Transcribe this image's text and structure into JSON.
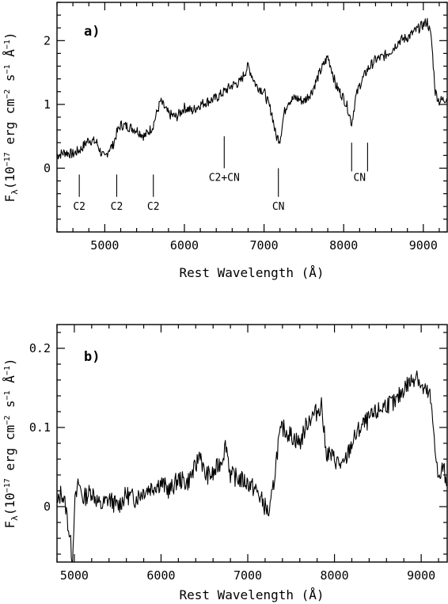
{
  "chart_data": [
    {
      "type": "line",
      "panel_label": "a)",
      "xlabel": "Rest Wavelength (Å)",
      "ylabel": "F_λ (10^-17 erg cm^-2 s^-1 Å^-1)",
      "xlim": [
        4400,
        9300
      ],
      "ylim": [
        -1.0,
        2.6
      ],
      "xticks": [
        5000,
        6000,
        7000,
        8000,
        9000
      ],
      "yticks": [
        0,
        1,
        2
      ],
      "grid": false,
      "series": [
        {
          "x": [
            4400,
            4500,
            4600,
            4700,
            4800,
            4900,
            4950,
            5000,
            5050,
            5100,
            5150,
            5200,
            5300,
            5400,
            5500,
            5600,
            5650,
            5700,
            5800,
            5900,
            6000,
            6100,
            6200,
            6300,
            6400,
            6500,
            6600,
            6700,
            6800,
            6850,
            6900,
            7000,
            7100,
            7150,
            7200,
            7250,
            7300,
            7400,
            7500,
            7600,
            7700,
            7800,
            7850,
            7900,
            8000,
            8050,
            8100,
            8150,
            8200,
            8300,
            8400,
            8500,
            8600,
            8700,
            8800,
            8900,
            9000,
            9050,
            9100,
            9150,
            9200,
            9300
          ],
          "y": [
            0.2,
            0.25,
            0.22,
            0.3,
            0.45,
            0.4,
            0.25,
            0.15,
            0.3,
            0.35,
            0.55,
            0.68,
            0.65,
            0.6,
            0.5,
            0.65,
            0.85,
            1.05,
            0.85,
            0.8,
            0.95,
            0.9,
            1.0,
            1.05,
            1.1,
            1.2,
            1.3,
            1.35,
            1.6,
            1.45,
            1.3,
            1.2,
            0.85,
            0.5,
            0.45,
            0.85,
            1.05,
            1.1,
            1.05,
            1.2,
            1.5,
            1.75,
            1.55,
            1.3,
            1.1,
            0.95,
            0.7,
            1.1,
            1.3,
            1.55,
            1.7,
            1.75,
            1.85,
            2.0,
            2.05,
            2.15,
            2.25,
            2.3,
            2.05,
            1.2,
            1.05,
            1.1
          ]
        }
      ],
      "annotations": [
        {
          "text": "C2",
          "x": 4680
        },
        {
          "text": "C2",
          "x": 5150
        },
        {
          "text": "C2",
          "x": 5610
        },
        {
          "text": "C2+CN",
          "x": 6500
        },
        {
          "text": "CN",
          "x": 7180
        },
        {
          "text": "CN",
          "x": 8200,
          "marks": [
            8100,
            8300
          ]
        }
      ]
    },
    {
      "type": "line",
      "panel_label": "b)",
      "xlabel": "Rest Wavelength (Å)",
      "ylabel": "F_λ (10^-17 erg cm^-2 s^-1 Å^-1)",
      "xlim": [
        4800,
        9300
      ],
      "ylim": [
        -0.07,
        0.23
      ],
      "xticks": [
        5000,
        6000,
        7000,
        8000,
        9000
      ],
      "yticks": [
        0,
        0.1,
        0.2
      ],
      "grid": false,
      "series": [
        {
          "x": [
            4800,
            4850,
            4900,
            4950,
            4980,
            5000,
            5050,
            5100,
            5200,
            5300,
            5400,
            5500,
            5600,
            5700,
            5800,
            5900,
            6000,
            6100,
            6200,
            6300,
            6400,
            6450,
            6500,
            6600,
            6700,
            6750,
            6800,
            6900,
            7000,
            7100,
            7200,
            7250,
            7300,
            7350,
            7400,
            7500,
            7600,
            7700,
            7800,
            7850,
            7900,
            8000,
            8100,
            8200,
            8300,
            8400,
            8500,
            8600,
            8700,
            8800,
            8900,
            8950,
            9000,
            9100,
            9150,
            9200,
            9250,
            9300
          ],
          "y": [
            0.0,
            0.02,
            0.0,
            -0.04,
            -0.07,
            0.0,
            0.03,
            0.01,
            0.02,
            0.0,
            0.01,
            0.0,
            0.015,
            0.01,
            0.02,
            0.025,
            0.03,
            0.02,
            0.035,
            0.03,
            0.05,
            0.07,
            0.04,
            0.04,
            0.06,
            0.08,
            0.04,
            0.035,
            0.03,
            0.02,
            0.0,
            -0.01,
            0.03,
            0.08,
            0.1,
            0.09,
            0.08,
            0.11,
            0.12,
            0.13,
            0.07,
            0.06,
            0.05,
            0.08,
            0.1,
            0.11,
            0.12,
            0.13,
            0.13,
            0.15,
            0.16,
            0.17,
            0.15,
            0.14,
            0.09,
            0.03,
            0.05,
            0.03
          ]
        }
      ]
    }
  ],
  "axis_text": {
    "a_ylabel_main": "F",
    "a_ylabel_sub": "λ",
    "a_ylabel_rest": "(10",
    "a_ylabel_exp1": "−17",
    "a_ylabel_rest2": " erg cm",
    "a_ylabel_exp2": "−2",
    "a_ylabel_rest3": " s",
    "a_ylabel_exp3": "−1",
    "a_ylabel_rest4": " Å",
    "a_ylabel_exp4": "−1",
    "a_ylabel_close": ")"
  }
}
